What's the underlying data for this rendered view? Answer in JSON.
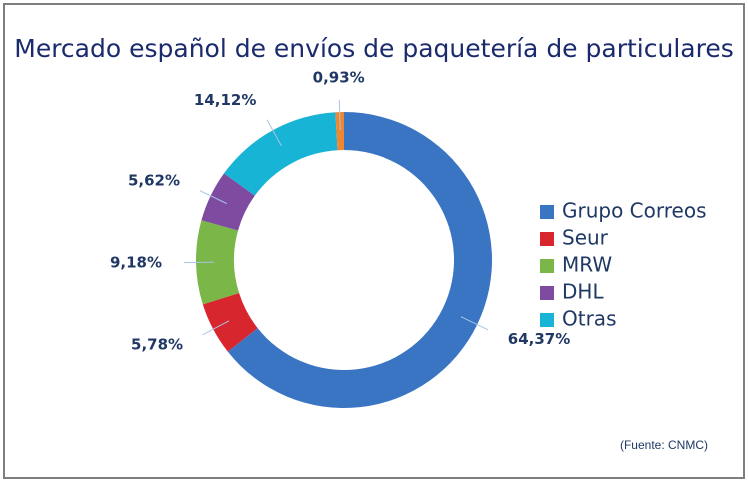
{
  "chart_data": {
    "type": "donut",
    "title": "Mercado español de envíos de paquetería de particulares",
    "categories": [
      "Grupo Correos",
      "Seur",
      "MRW",
      "DHL",
      "Otras",
      null
    ],
    "values": [
      64.37,
      5.78,
      9.18,
      5.62,
      14.12,
      0.93
    ],
    "value_labels": [
      "64,37%",
      "5,78%",
      "9,18%",
      "5,62%",
      "14,12%",
      "0,93%"
    ],
    "colors": [
      "#3a75c4",
      "#d7262e",
      "#7ab648",
      "#7f4ba0",
      "#18b4d6",
      "#f0862d"
    ],
    "legend": "right",
    "note": "(Fuente: CNMC)"
  }
}
